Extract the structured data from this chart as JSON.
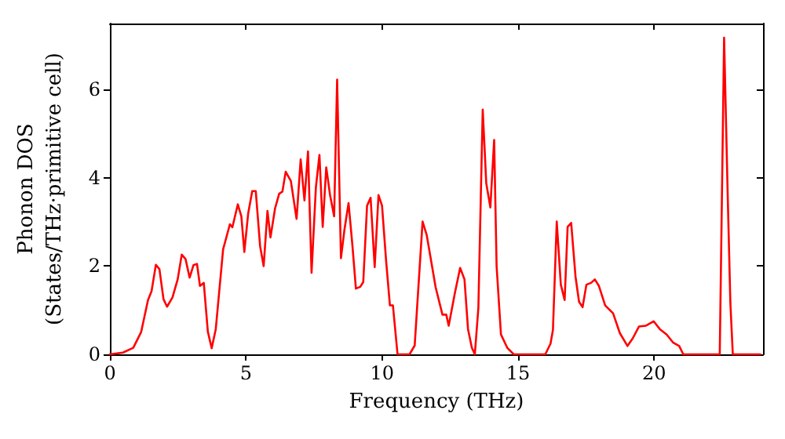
{
  "chart_data": {
    "type": "line",
    "xlabel": "Frequency (THz)",
    "ylabel": "Phonon DOS\n(States/THz·primitive cell)",
    "xlim": [
      0,
      24
    ],
    "xticks": [
      0,
      5,
      10,
      15,
      20
    ],
    "ylim": [
      0,
      7.5
    ],
    "yticks": [
      0,
      2,
      4,
      6
    ],
    "marker": "none",
    "line_style": "solid",
    "series": [
      {
        "color": "#ff0000",
        "x": [
          0,
          0.48,
          0.86,
          1.15,
          1.4,
          1.53,
          1.69,
          1.82,
          1.97,
          2.1,
          2.3,
          2.49,
          2.64,
          2.78,
          2.93,
          3.07,
          3.2,
          3.31,
          3.45,
          3.6,
          3.74,
          3.89,
          4.16,
          4.41,
          4.5,
          4.7,
          4.83,
          4.94,
          5.08,
          5.23,
          5.36,
          5.52,
          5.65,
          5.79,
          5.9,
          6.07,
          6.22,
          6.34,
          6.46,
          6.65,
          6.86,
          7.01,
          7.15,
          7.28,
          7.41,
          7.57,
          7.7,
          7.82,
          7.95,
          8.09,
          8.24,
          8.35,
          8.49,
          8.62,
          8.77,
          8.91,
          9.04,
          9.2,
          9.31,
          9.45,
          9.58,
          9.73,
          9.87,
          10.0,
          10.15,
          10.29,
          10.4,
          10.57,
          11.01,
          11.2,
          11.49,
          11.64,
          11.97,
          12.22,
          12.36,
          12.45,
          12.68,
          12.87,
          13.03,
          13.16,
          13.3,
          13.41,
          13.54,
          13.7,
          13.83,
          13.98,
          14.12,
          14.21,
          14.37,
          14.6,
          14.84,
          16.0,
          16.19,
          16.28,
          16.42,
          16.57,
          16.71,
          16.82,
          16.95,
          17.11,
          17.24,
          17.37,
          17.51,
          17.68,
          17.82,
          17.97,
          18.2,
          18.49,
          18.74,
          19.02,
          19.21,
          19.44,
          19.7,
          19.98,
          20.21,
          20.46,
          20.69,
          20.92,
          21.07,
          22.41,
          22.57,
          22.7,
          22.8,
          22.89,
          23.9
        ],
        "values": [
          0,
          0.04,
          0.15,
          0.51,
          1.23,
          1.43,
          2.03,
          1.93,
          1.25,
          1.08,
          1.29,
          1.7,
          2.26,
          2.16,
          1.74,
          2.02,
          2.05,
          1.55,
          1.62,
          0.51,
          0.14,
          0.57,
          2.38,
          2.95,
          2.88,
          3.4,
          3.13,
          2.32,
          3.19,
          3.7,
          3.7,
          2.45,
          2.0,
          3.25,
          2.65,
          3.31,
          3.64,
          3.69,
          4.14,
          3.93,
          3.07,
          4.42,
          3.49,
          4.6,
          1.85,
          3.79,
          4.52,
          2.89,
          4.24,
          3.61,
          3.13,
          6.23,
          2.18,
          2.83,
          3.43,
          2.48,
          1.49,
          1.53,
          1.64,
          3.37,
          3.55,
          1.98,
          3.61,
          3.37,
          2.12,
          1.11,
          1.11,
          0,
          0,
          0.2,
          3.01,
          2.71,
          1.52,
          0.9,
          0.9,
          0.65,
          1.4,
          1.96,
          1.7,
          0.57,
          0.15,
          0,
          1.05,
          5.55,
          3.88,
          3.33,
          4.86,
          2.0,
          0.45,
          0.15,
          0,
          0,
          0.24,
          0.55,
          3.01,
          1.58,
          1.23,
          2.89,
          2.98,
          1.76,
          1.19,
          1.07,
          1.58,
          1.62,
          1.7,
          1.55,
          1.11,
          0.93,
          0.48,
          0.19,
          0.36,
          0.63,
          0.65,
          0.75,
          0.57,
          0.45,
          0.27,
          0.19,
          0,
          0,
          7.18,
          3.67,
          1.17,
          0,
          0
        ]
      }
    ]
  }
}
